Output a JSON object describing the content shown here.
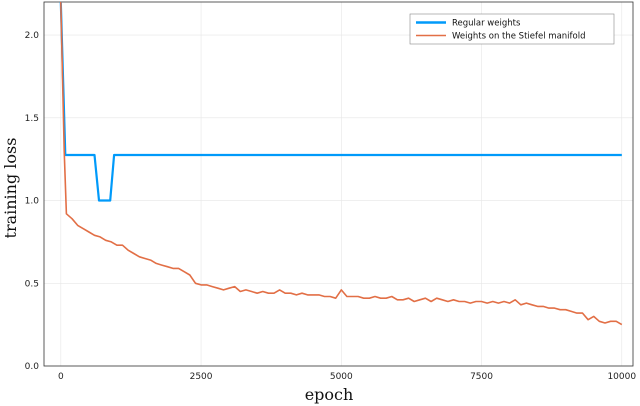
{
  "chart_data": {
    "type": "line",
    "title": "",
    "xlabel": "epoch",
    "ylabel": "training loss",
    "xlim": [
      -300,
      10200
    ],
    "ylim": [
      0,
      2.2
    ],
    "xticks": [
      0,
      2500,
      5000,
      7500,
      10000
    ],
    "xtick_labels": [
      "0",
      "2500",
      "5000",
      "7500",
      "10000"
    ],
    "yticks": [
      0.0,
      0.5,
      1.0,
      1.5,
      2.0
    ],
    "ytick_labels": [
      "0.0",
      "0.5",
      "1.0",
      "1.5",
      "2.0"
    ],
    "grid": true,
    "legend_position": "top-right",
    "series": [
      {
        "name": "Regular weights",
        "color": "#009AFA",
        "x": [
          0,
          80,
          600,
          680,
          880,
          950,
          10000
        ],
        "y": [
          2.2,
          1.275,
          1.275,
          1.0,
          1.0,
          1.275,
          1.275
        ]
      },
      {
        "name": "Weights on the Stiefel manifold",
        "color": "#E26F46",
        "x": [
          0,
          60,
          100,
          200,
          300,
          400,
          500,
          600,
          700,
          800,
          900,
          1000,
          1100,
          1200,
          1300,
          1400,
          1500,
          1600,
          1700,
          1800,
          1900,
          2000,
          2100,
          2200,
          2300,
          2400,
          2500,
          2600,
          2700,
          2800,
          2900,
          3000,
          3100,
          3200,
          3300,
          3400,
          3500,
          3600,
          3700,
          3800,
          3900,
          4000,
          4100,
          4200,
          4300,
          4400,
          4500,
          4600,
          4700,
          4800,
          4900,
          5000,
          5100,
          5200,
          5300,
          5400,
          5500,
          5600,
          5700,
          5800,
          5900,
          6000,
          6100,
          6200,
          6300,
          6400,
          6500,
          6600,
          6700,
          6800,
          6900,
          7000,
          7100,
          7200,
          7300,
          7400,
          7500,
          7600,
          7700,
          7800,
          7900,
          8000,
          8100,
          8200,
          8300,
          8400,
          8500,
          8600,
          8700,
          8800,
          8900,
          9000,
          9100,
          9200,
          9300,
          9400,
          9500,
          9600,
          9700,
          9800,
          9900,
          10000
        ],
        "y": [
          2.2,
          1.3,
          0.92,
          0.89,
          0.85,
          0.83,
          0.81,
          0.79,
          0.78,
          0.76,
          0.75,
          0.73,
          0.73,
          0.7,
          0.68,
          0.66,
          0.65,
          0.64,
          0.62,
          0.61,
          0.6,
          0.59,
          0.59,
          0.57,
          0.55,
          0.5,
          0.49,
          0.49,
          0.48,
          0.47,
          0.46,
          0.47,
          0.48,
          0.45,
          0.46,
          0.45,
          0.44,
          0.45,
          0.44,
          0.44,
          0.46,
          0.44,
          0.44,
          0.43,
          0.44,
          0.43,
          0.43,
          0.43,
          0.42,
          0.42,
          0.41,
          0.46,
          0.42,
          0.42,
          0.42,
          0.41,
          0.41,
          0.42,
          0.41,
          0.41,
          0.42,
          0.4,
          0.4,
          0.41,
          0.39,
          0.4,
          0.41,
          0.39,
          0.41,
          0.4,
          0.39,
          0.4,
          0.39,
          0.39,
          0.38,
          0.39,
          0.39,
          0.38,
          0.39,
          0.38,
          0.39,
          0.38,
          0.4,
          0.37,
          0.38,
          0.37,
          0.36,
          0.36,
          0.35,
          0.35,
          0.34,
          0.34,
          0.33,
          0.32,
          0.32,
          0.28,
          0.3,
          0.27,
          0.26,
          0.27,
          0.27,
          0.25
        ]
      }
    ]
  }
}
